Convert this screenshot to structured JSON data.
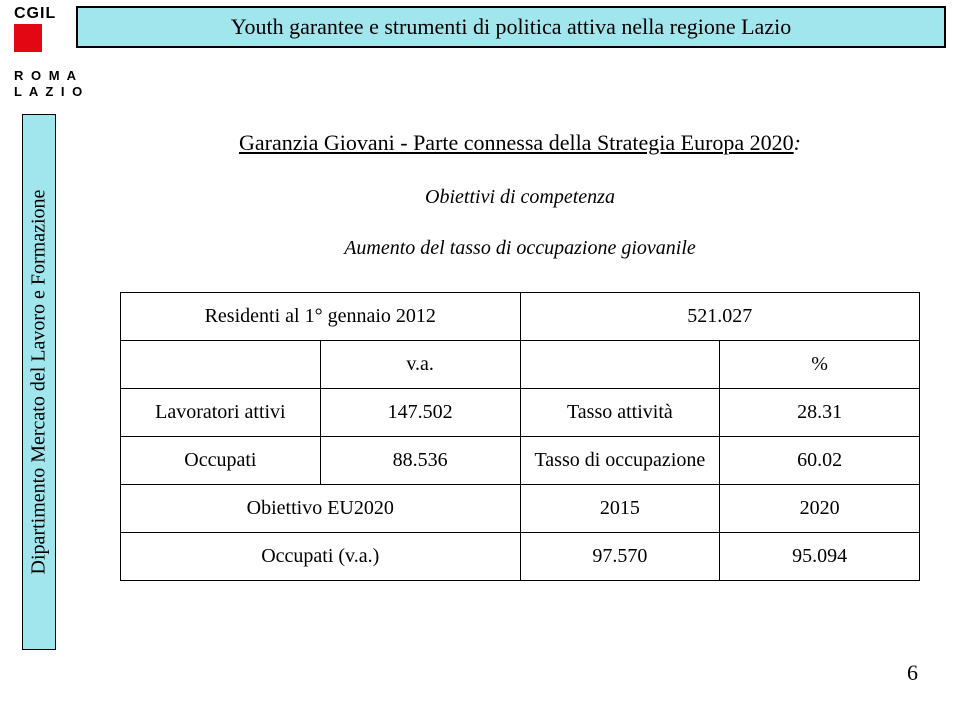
{
  "header": {
    "logo_text": "CGIL",
    "title": "Youth garantee e strumenti di politica attiva nella regione Lazio",
    "roma": "R O M A",
    "lazio": "L A Z I O"
  },
  "sidebar": {
    "label": "Dipartimento Mercato del Lavoro e Formazione"
  },
  "content": {
    "subtitle_prefix": "Garanzia Giovani  - Parte connessa della Strategia Europa 2020",
    "subtitle_suffix": ":",
    "objective_heading": "Obiettivi di competenza",
    "aumento": "Aumento del tasso di occupazione giovanile"
  },
  "table": {
    "r1_c1": "Residenti al 1° gennaio 2012",
    "r1_c3": "521.027",
    "r2_c2": "v.a.",
    "r2_c4": "%",
    "r3_c1": "Lavoratori attivi",
    "r3_c2": "147.502",
    "r3_c3": "Tasso attività",
    "r3_c4": "28.31",
    "r4_c1": "Occupati",
    "r4_c2": "88.536",
    "r4_c3": "Tasso di occupazione",
    "r4_c4": "60.02",
    "r5_c12": "Obiettivo EU2020",
    "r5_c3": "2015",
    "r5_c4": "2020",
    "r6_c12": "Occupati (v.a.)",
    "r6_c3": "97.570",
    "r6_c4": "95.094"
  },
  "page_number": "6",
  "colors": {
    "accent": "#a1e6ec",
    "logo_red": "#e30613"
  }
}
